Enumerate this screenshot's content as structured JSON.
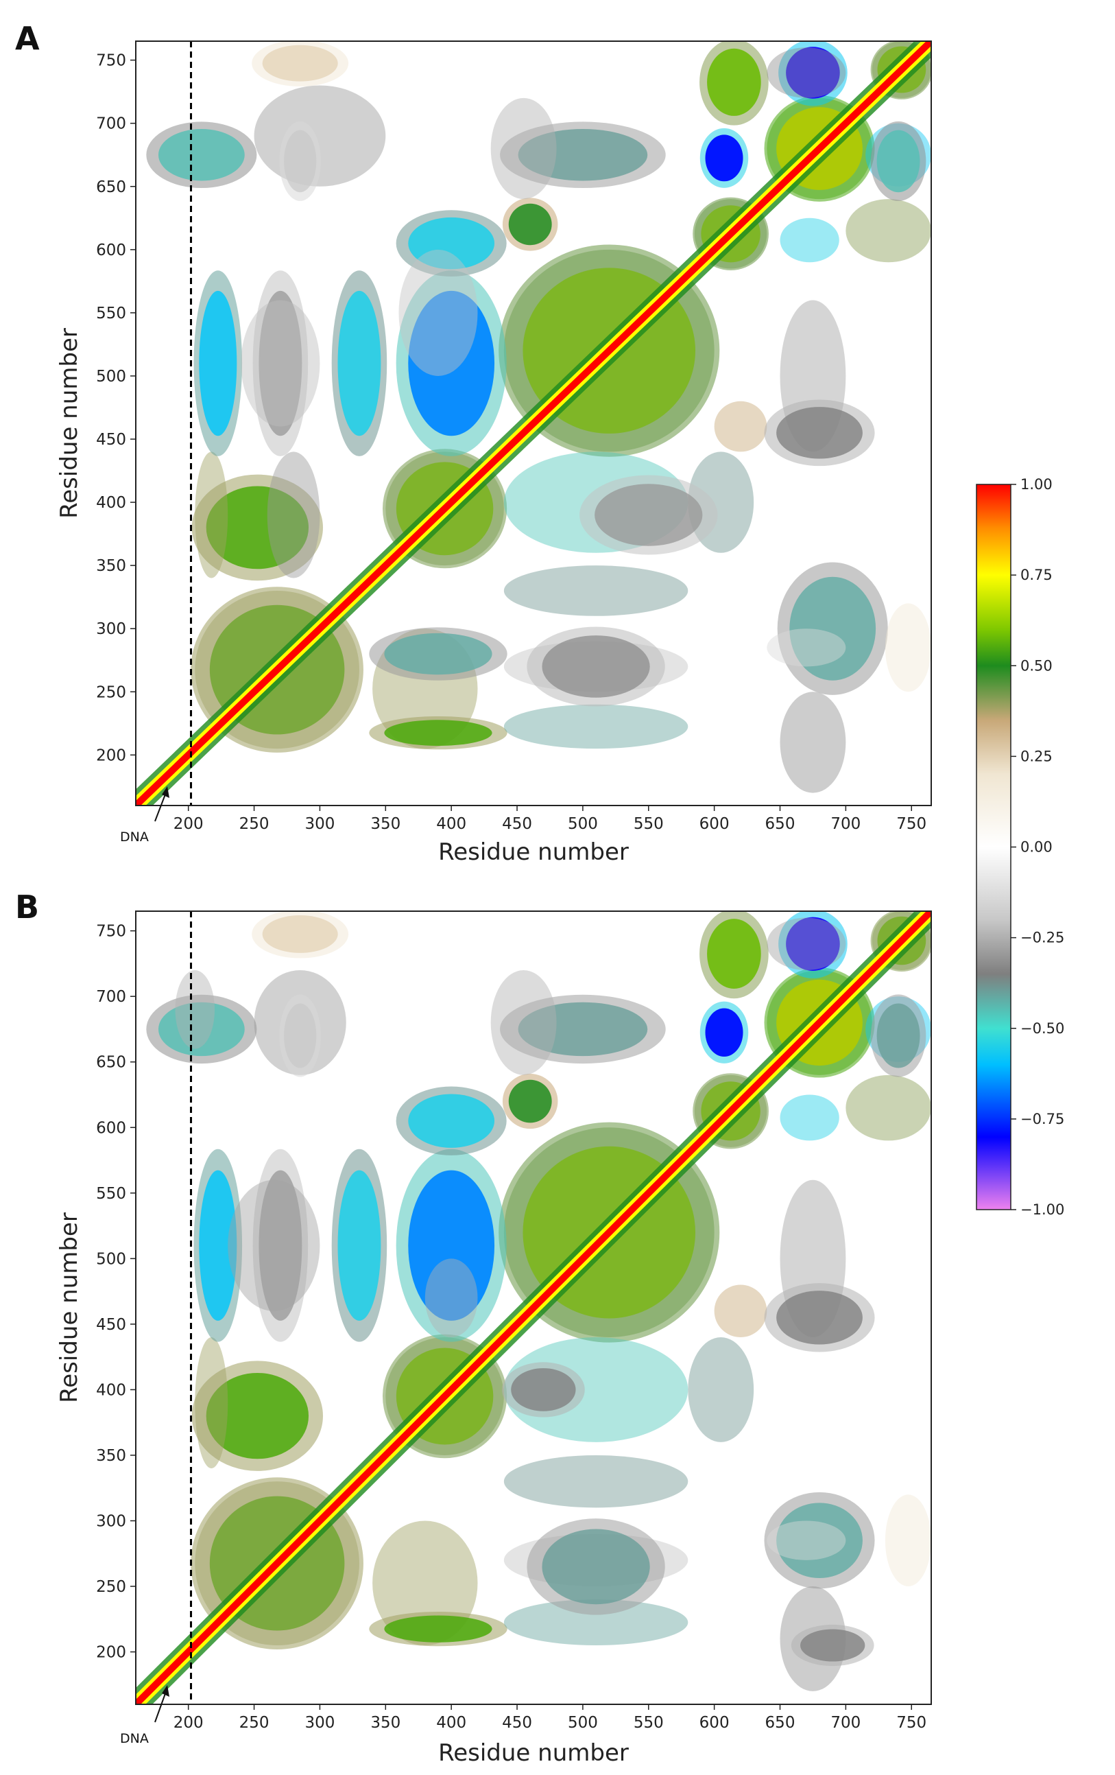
{
  "chart_data": [
    {
      "panel": "A",
      "type": "heatmap",
      "xlabel": "Residue number",
      "ylabel": "Residue number",
      "xlim": [
        160,
        765
      ],
      "ylim": [
        160,
        765
      ],
      "xticks": [
        200,
        250,
        300,
        350,
        400,
        450,
        500,
        550,
        600,
        650,
        700,
        750
      ],
      "yticks": [
        200,
        250,
        300,
        350,
        400,
        450,
        500,
        550,
        600,
        650,
        700,
        750
      ],
      "colormap_range": [
        -1.0,
        1.0
      ],
      "annotation": {
        "text": "DNA",
        "target_residue": 180
      },
      "reference_line_x": 202,
      "regions": [
        {
          "x": [
            440,
            600
          ],
          "y": [
            440,
            600
          ],
          "value": 0.62
        },
        {
          "x": [
            350,
            440
          ],
          "y": [
            350,
            440
          ],
          "value": 0.6
        },
        {
          "x": [
            205,
            330
          ],
          "y": [
            205,
            330
          ],
          "value": 0.55
        },
        {
          "x": [
            585,
            640
          ],
          "y": [
            585,
            640
          ],
          "value": 0.62
        },
        {
          "x": [
            640,
            720
          ],
          "y": [
            640,
            720
          ],
          "value": 0.78
        },
        {
          "x": [
            720,
            765
          ],
          "y": [
            720,
            765
          ],
          "value": 0.6
        },
        {
          "x": [
            205,
            300
          ],
          "y": [
            340,
            420
          ],
          "value": 0.55
        },
        {
          "x": [
            340,
            440
          ],
          "y": [
            205,
            230
          ],
          "value": 0.55
        },
        {
          "x": [
            440,
            480
          ],
          "y": [
            600,
            640
          ],
          "value": 0.5
        },
        {
          "x": [
            590,
            640
          ],
          "y": [
            700,
            765
          ],
          "value": 0.58
        },
        {
          "x": [
            205,
            240
          ],
          "y": [
            440,
            580
          ],
          "value": -0.58
        },
        {
          "x": [
            250,
            290
          ],
          "y": [
            440,
            580
          ],
          "value": -0.3
        },
        {
          "x": [
            310,
            350
          ],
          "y": [
            440,
            580
          ],
          "value": -0.55
        },
        {
          "x": [
            360,
            440
          ],
          "y": [
            440,
            580
          ],
          "value": -0.66
        },
        {
          "x": [
            360,
            440
          ],
          "y": [
            580,
            630
          ],
          "value": -0.55
        },
        {
          "x": [
            590,
            625
          ],
          "y": [
            650,
            695
          ],
          "value": -0.78
        },
        {
          "x": [
            650,
            700
          ],
          "y": [
            715,
            765
          ],
          "value": -0.82
        },
        {
          "x": [
            170,
            250
          ],
          "y": [
            650,
            700
          ],
          "value": -0.45
        },
        {
          "x": [
            440,
            560
          ],
          "y": [
            650,
            700
          ],
          "value": -0.4
        },
        {
          "x": [
            720,
            760
          ],
          "y": [
            640,
            700
          ],
          "value": -0.45
        },
        {
          "x": [
            650,
            730
          ],
          "y": [
            250,
            350
          ],
          "value": -0.42
        },
        {
          "x": [
            340,
            440
          ],
          "y": [
            260,
            300
          ],
          "value": -0.42
        },
        {
          "x": [
            460,
            560
          ],
          "y": [
            240,
            300
          ],
          "value": -0.32
        },
        {
          "x": [
            500,
            600
          ],
          "y": [
            360,
            420
          ],
          "value": -0.3
        },
        {
          "x": [
            640,
            720
          ],
          "y": [
            430,
            480
          ],
          "value": -0.35
        },
        {
          "x": [
            250,
            320
          ],
          "y": [
            730,
            765
          ],
          "value": 0.25
        },
        {
          "x": [
            270,
            300
          ],
          "y": [
            640,
            700
          ],
          "value": -0.2
        }
      ]
    },
    {
      "panel": "B",
      "type": "heatmap",
      "xlabel": "Residue number",
      "ylabel": "Residue number",
      "xlim": [
        160,
        765
      ],
      "ylim": [
        160,
        765
      ],
      "xticks": [
        200,
        250,
        300,
        350,
        400,
        450,
        500,
        550,
        600,
        650,
        700,
        750
      ],
      "yticks": [
        200,
        250,
        300,
        350,
        400,
        450,
        500,
        550,
        600,
        650,
        700,
        750
      ],
      "colormap_range": [
        -1.0,
        1.0
      ],
      "annotation": {
        "text": "DNA",
        "target_residue": 180
      },
      "reference_line_x": 202,
      "regions": [
        {
          "x": [
            440,
            600
          ],
          "y": [
            440,
            600
          ],
          "value": 0.62
        },
        {
          "x": [
            350,
            440
          ],
          "y": [
            350,
            440
          ],
          "value": 0.6
        },
        {
          "x": [
            205,
            330
          ],
          "y": [
            205,
            330
          ],
          "value": 0.55
        },
        {
          "x": [
            585,
            640
          ],
          "y": [
            585,
            640
          ],
          "value": 0.6
        },
        {
          "x": [
            640,
            720
          ],
          "y": [
            640,
            720
          ],
          "value": 0.78
        },
        {
          "x": [
            720,
            765
          ],
          "y": [
            720,
            765
          ],
          "value": 0.58
        },
        {
          "x": [
            205,
            300
          ],
          "y": [
            340,
            420
          ],
          "value": 0.55
        },
        {
          "x": [
            340,
            440
          ],
          "y": [
            205,
            230
          ],
          "value": 0.55
        },
        {
          "x": [
            440,
            480
          ],
          "y": [
            600,
            640
          ],
          "value": 0.5
        },
        {
          "x": [
            590,
            640
          ],
          "y": [
            700,
            765
          ],
          "value": 0.58
        },
        {
          "x": [
            205,
            240
          ],
          "y": [
            440,
            580
          ],
          "value": -0.58
        },
        {
          "x": [
            250,
            290
          ],
          "y": [
            440,
            580
          ],
          "value": -0.3
        },
        {
          "x": [
            310,
            350
          ],
          "y": [
            440,
            580
          ],
          "value": -0.55
        },
        {
          "x": [
            360,
            440
          ],
          "y": [
            440,
            580
          ],
          "value": -0.66
        },
        {
          "x": [
            360,
            440
          ],
          "y": [
            580,
            630
          ],
          "value": -0.55
        },
        {
          "x": [
            590,
            625
          ],
          "y": [
            650,
            695
          ],
          "value": -0.78
        },
        {
          "x": [
            650,
            700
          ],
          "y": [
            715,
            765
          ],
          "value": -0.82
        },
        {
          "x": [
            170,
            250
          ],
          "y": [
            650,
            700
          ],
          "value": -0.45
        },
        {
          "x": [
            440,
            560
          ],
          "y": [
            650,
            700
          ],
          "value": -0.4
        },
        {
          "x": [
            720,
            760
          ],
          "y": [
            640,
            700
          ],
          "value": -0.4
        },
        {
          "x": [
            640,
            720
          ],
          "y": [
            250,
            320
          ],
          "value": -0.42
        },
        {
          "x": [
            460,
            560
          ],
          "y": [
            230,
            300
          ],
          "value": -0.4
        },
        {
          "x": [
            440,
            500
          ],
          "y": [
            380,
            420
          ],
          "value": -0.35
        },
        {
          "x": [
            640,
            720
          ],
          "y": [
            430,
            480
          ],
          "value": -0.35
        },
        {
          "x": [
            660,
            720
          ],
          "y": [
            190,
            220
          ],
          "value": -0.35
        },
        {
          "x": [
            250,
            320
          ],
          "y": [
            730,
            765
          ],
          "value": 0.25
        },
        {
          "x": [
            270,
            300
          ],
          "y": [
            640,
            700
          ],
          "value": -0.2
        }
      ]
    },
    {
      "type": "colorbar",
      "range": [
        -1.0,
        1.0
      ],
      "ticks": [
        "1.00",
        "0.75",
        "0.50",
        "0.25",
        "0.00",
        "−0.25",
        "−0.50",
        "−0.75",
        "−1.00"
      ],
      "tick_values": [
        1.0,
        0.75,
        0.5,
        0.25,
        0.0,
        -0.25,
        -0.5,
        -0.75,
        -1.0
      ],
      "stops": [
        {
          "value": -1.0,
          "color": "#ee82ee"
        },
        {
          "value": -0.8,
          "color": "#0000ff"
        },
        {
          "value": -0.6,
          "color": "#00bfff"
        },
        {
          "value": -0.5,
          "color": "#40e0d0"
        },
        {
          "value": -0.35,
          "color": "#7f7f7f"
        },
        {
          "value": -0.2,
          "color": "#c8c8c8"
        },
        {
          "value": 0.0,
          "color": "#ffffff"
        },
        {
          "value": 0.2,
          "color": "#f0e6d2"
        },
        {
          "value": 0.35,
          "color": "#c8a878"
        },
        {
          "value": 0.5,
          "color": "#1e8c1e"
        },
        {
          "value": 0.6,
          "color": "#7fc800"
        },
        {
          "value": 0.75,
          "color": "#ffff00"
        },
        {
          "value": 0.88,
          "color": "#ff8c00"
        },
        {
          "value": 1.0,
          "color": "#ff0000"
        }
      ]
    }
  ]
}
